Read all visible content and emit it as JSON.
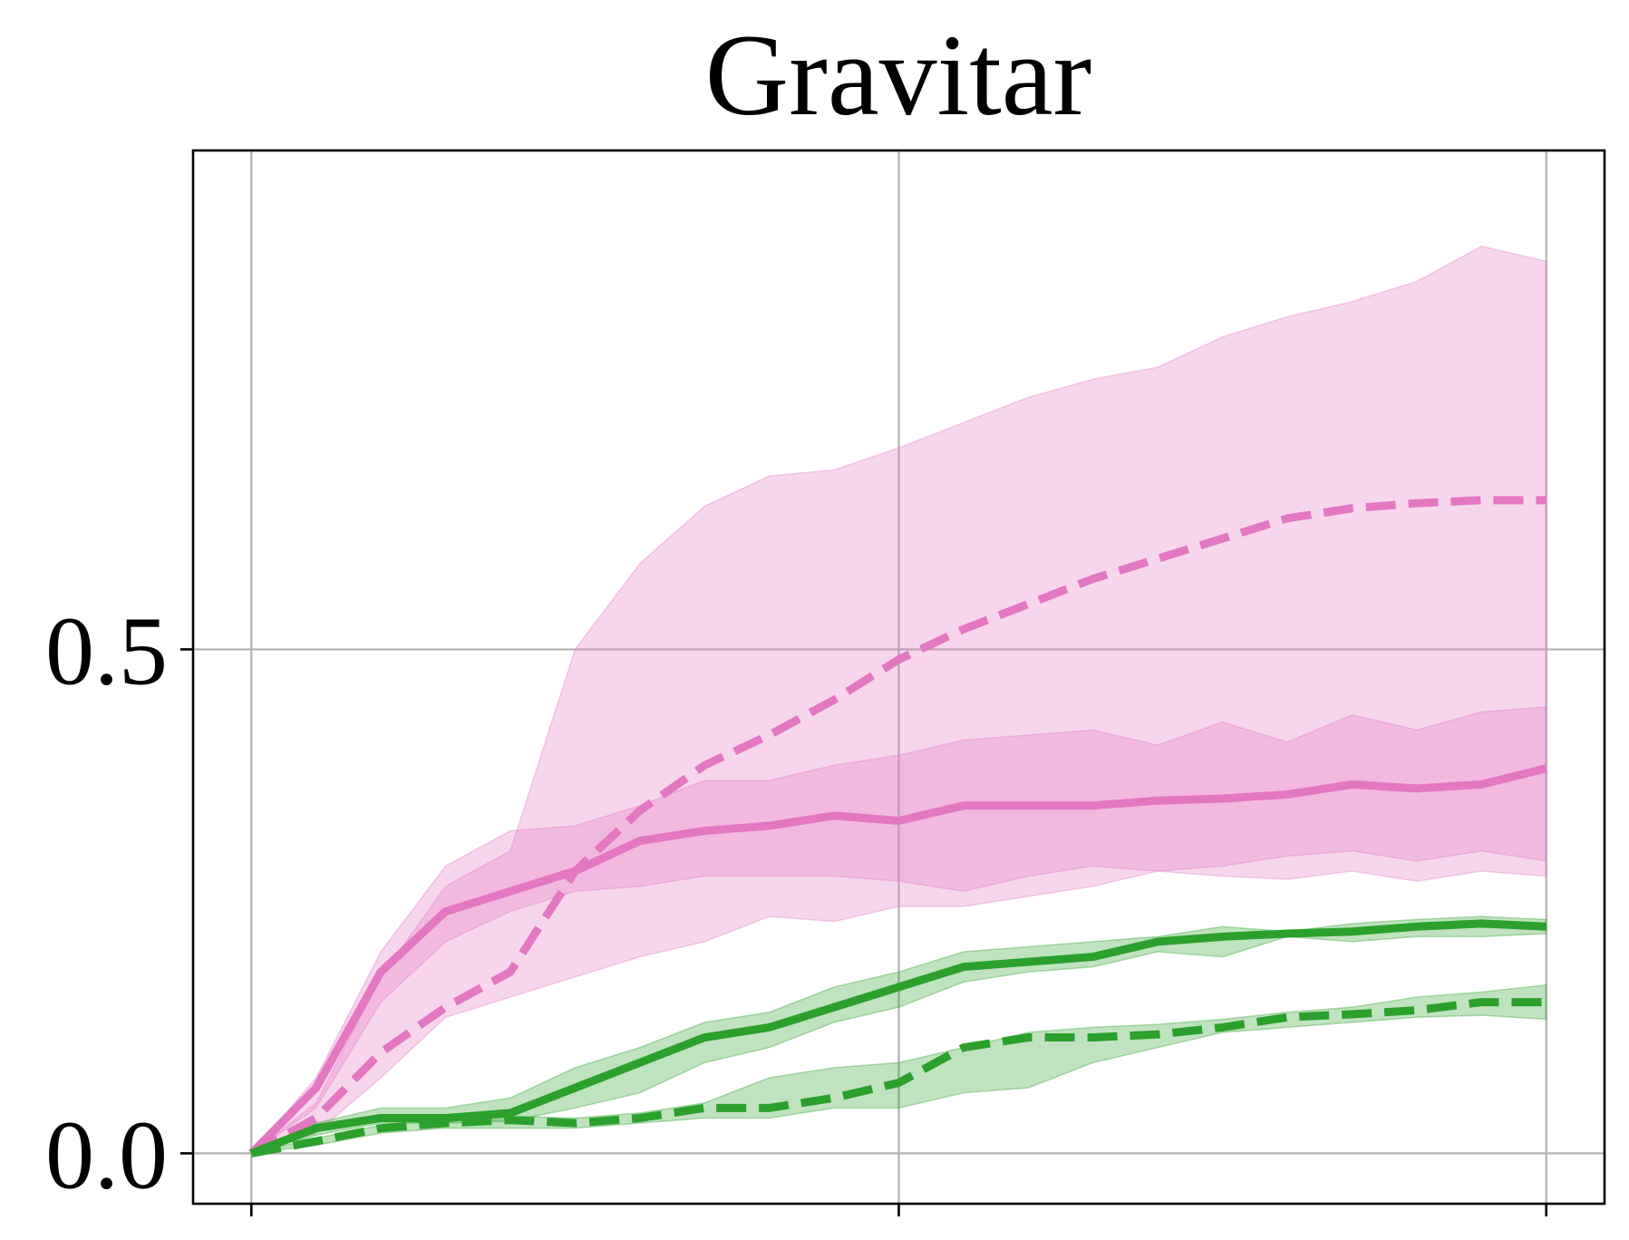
{
  "chart_data": {
    "type": "line",
    "title": "Gravitar",
    "xlabel": "",
    "ylabel": "",
    "xlim": [
      -0.045,
      1.045
    ],
    "ylim": [
      -0.05,
      0.995
    ],
    "xticks": [
      0,
      0.5,
      1
    ],
    "yticks": [
      0.0,
      0.5
    ],
    "ytick_labels": [
      "0.0",
      "0.5"
    ],
    "grid": true,
    "legend": "none",
    "x": [
      0,
      0.05,
      0.1,
      0.15,
      0.2,
      0.25,
      0.3,
      0.35,
      0.4,
      0.45,
      0.5,
      0.55,
      0.6,
      0.65,
      0.7,
      0.75,
      0.8,
      0.85,
      0.9,
      0.95,
      1.0
    ],
    "series": [
      {
        "color": "#e377c2",
        "style": "solid",
        "values": [
          0.0,
          0.065,
          0.18,
          0.24,
          0.26,
          0.28,
          0.31,
          0.32,
          0.325,
          0.335,
          0.33,
          0.345,
          0.345,
          0.345,
          0.35,
          0.352,
          0.356,
          0.366,
          0.362,
          0.366,
          0.382
        ],
        "lower": [
          0.0,
          0.045,
          0.15,
          0.21,
          0.24,
          0.26,
          0.265,
          0.275,
          0.275,
          0.275,
          0.27,
          0.26,
          0.275,
          0.285,
          0.28,
          0.275,
          0.272,
          0.28,
          0.27,
          0.28,
          0.275
        ],
        "upper": [
          0.0,
          0.075,
          0.2,
          0.285,
          0.32,
          0.325,
          0.345,
          0.37,
          0.37,
          0.385,
          0.395,
          0.41,
          0.415,
          0.42,
          0.405,
          0.428,
          0.408,
          0.435,
          0.42,
          0.438,
          0.443
        ]
      },
      {
        "color": "#e377c2",
        "style": "dashed",
        "values": [
          0.0,
          0.035,
          0.1,
          0.145,
          0.18,
          0.28,
          0.34,
          0.385,
          0.415,
          0.45,
          0.49,
          0.52,
          0.545,
          0.57,
          0.59,
          0.61,
          0.63,
          0.64,
          0.645,
          0.648,
          0.648
        ],
        "lower": [
          0.0,
          0.02,
          0.075,
          0.135,
          0.155,
          0.175,
          0.195,
          0.21,
          0.235,
          0.23,
          0.245,
          0.245,
          0.255,
          0.265,
          0.28,
          0.285,
          0.295,
          0.3,
          0.29,
          0.3,
          0.29
        ],
        "upper": [
          0.0,
          0.05,
          0.175,
          0.265,
          0.3,
          0.5,
          0.585,
          0.642,
          0.672,
          0.678,
          0.7,
          0.725,
          0.75,
          0.768,
          0.78,
          0.81,
          0.83,
          0.845,
          0.865,
          0.9,
          0.885
        ]
      },
      {
        "color": "#2ca02c",
        "style": "solid",
        "values": [
          0.0,
          0.025,
          0.035,
          0.035,
          0.04,
          0.065,
          0.09,
          0.115,
          0.125,
          0.145,
          0.165,
          0.185,
          0.19,
          0.195,
          0.21,
          0.215,
          0.218,
          0.22,
          0.225,
          0.228,
          0.225
        ],
        "lower": [
          0.0,
          0.018,
          0.03,
          0.03,
          0.032,
          0.045,
          0.06,
          0.09,
          0.105,
          0.13,
          0.145,
          0.17,
          0.18,
          0.185,
          0.2,
          0.195,
          0.215,
          0.21,
          0.215,
          0.215,
          0.218
        ],
        "upper": [
          0.0,
          0.03,
          0.045,
          0.045,
          0.055,
          0.085,
          0.105,
          0.13,
          0.14,
          0.165,
          0.18,
          0.2,
          0.205,
          0.21,
          0.215,
          0.225,
          0.22,
          0.228,
          0.232,
          0.235,
          0.232
        ]
      },
      {
        "color": "#2ca02c",
        "style": "dashed",
        "values": [
          0.0,
          0.012,
          0.025,
          0.03,
          0.033,
          0.03,
          0.035,
          0.045,
          0.045,
          0.055,
          0.07,
          0.105,
          0.115,
          0.115,
          0.118,
          0.125,
          0.135,
          0.138,
          0.142,
          0.15,
          0.15
        ],
        "lower": [
          0.0,
          0.008,
          0.02,
          0.025,
          0.025,
          0.025,
          0.03,
          0.035,
          0.035,
          0.045,
          0.045,
          0.06,
          0.065,
          0.09,
          0.105,
          0.12,
          0.125,
          0.13,
          0.135,
          0.137,
          0.133
        ],
        "upper": [
          0.0,
          0.015,
          0.028,
          0.033,
          0.037,
          0.035,
          0.04,
          0.05,
          0.075,
          0.085,
          0.09,
          0.105,
          0.12,
          0.125,
          0.128,
          0.133,
          0.14,
          0.145,
          0.155,
          0.16,
          0.167
        ]
      }
    ]
  }
}
